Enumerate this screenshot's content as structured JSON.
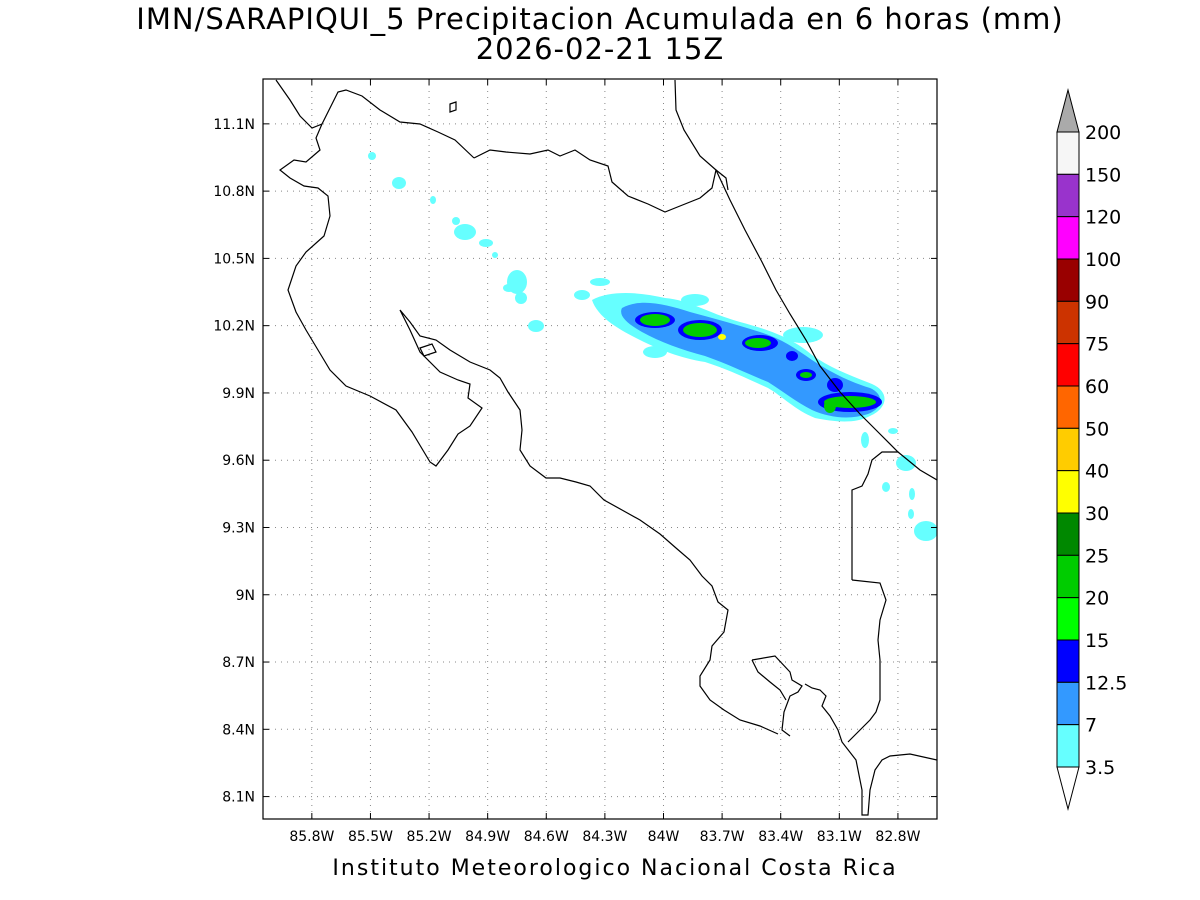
{
  "title": {
    "line1": "IMN/SARAPIQUI_5 Precipitacion Acumulada en 6 horas (mm)",
    "line2": "2026-02-21 15Z"
  },
  "footer": "Instituto Meteorologico Nacional Costa Rica",
  "map": {
    "lon_range": [
      -86.05,
      -82.6
    ],
    "lat_range": [
      8.0,
      11.3
    ],
    "lon_ticks": [
      "85.8W",
      "85.5W",
      "85.2W",
      "84.9W",
      "84.6W",
      "84.3W",
      "84W",
      "83.7W",
      "83.4W",
      "83.1W",
      "82.8W"
    ],
    "lat_ticks": [
      "11.1N",
      "10.8N",
      "10.5N",
      "10.2N",
      "9.9N",
      "9.6N",
      "9.3N",
      "9N",
      "8.7N",
      "8.4N",
      "8.1N"
    ],
    "grid": "dotted"
  },
  "colorbar": {
    "levels": [
      "200",
      "150",
      "120",
      "100",
      "90",
      "75",
      "60",
      "50",
      "40",
      "30",
      "25",
      "20",
      "15",
      "12.5",
      "7",
      "3.5"
    ],
    "colors": [
      "#f6f6f6",
      "#9933cc",
      "#ff00ff",
      "#990000",
      "#cc3300",
      "#ff0000",
      "#ff6600",
      "#ffcc00",
      "#ffff00",
      "#008800",
      "#00cc00",
      "#00ff00",
      "#0000ff",
      "#3399ff",
      "#66ffff"
    ],
    "over_color": "#aaaaaa",
    "under_color": "#ffffff"
  },
  "palette": {
    "light_cyan": "#66ffff",
    "mid_blue": "#3399ff",
    "blue": "#0000ff",
    "bright_green": "#00ff00",
    "green": "#00cc00",
    "yellow": "#ffff00"
  }
}
